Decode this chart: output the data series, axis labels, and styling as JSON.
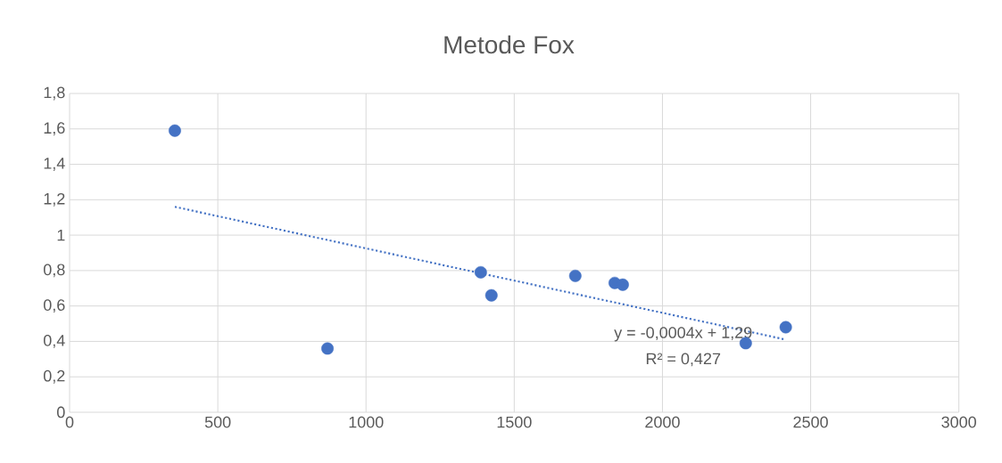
{
  "chart_data": {
    "type": "scatter",
    "title": "Metode Fox",
    "series": [
      {
        "type": "scatter",
        "color": "#4472c4",
        "marker": "circle",
        "x": [
          355,
          870,
          1387,
          1423,
          1706,
          1839,
          1866,
          2281,
          2416
        ],
        "values": [
          1.59,
          0.36,
          0.79,
          0.66,
          0.77,
          0.73,
          0.72,
          0.39,
          0.48
        ]
      },
      {
        "type": "line",
        "color": "#4472c4",
        "marker": "none",
        "line_style": "dotted",
        "x": [
          355,
          2416
        ],
        "values": [
          1.16,
          0.41
        ]
      }
    ],
    "annotations": [
      "y = -0,0004x + 1,29",
      "R² = 0,427"
    ],
    "xlim": [
      0,
      3000
    ],
    "xticks": [
      0,
      500,
      1000,
      1500,
      2000,
      2500,
      3000
    ],
    "ylim": [
      0,
      1.8
    ],
    "yticks": [
      0,
      {
        "value": 0.2,
        "label": "0,2"
      },
      {
        "value": 0.4,
        "label": "0,4"
      },
      {
        "value": 0.6,
        "label": "0,6"
      },
      {
        "value": 0.8,
        "label": "0,8"
      },
      1,
      {
        "value": 1.2,
        "label": "1,2"
      },
      {
        "value": 1.4,
        "label": "1,4"
      },
      {
        "value": 1.6,
        "label": "1,6"
      },
      {
        "value": 1.8,
        "label": "1,8"
      }
    ],
    "grid": true
  }
}
